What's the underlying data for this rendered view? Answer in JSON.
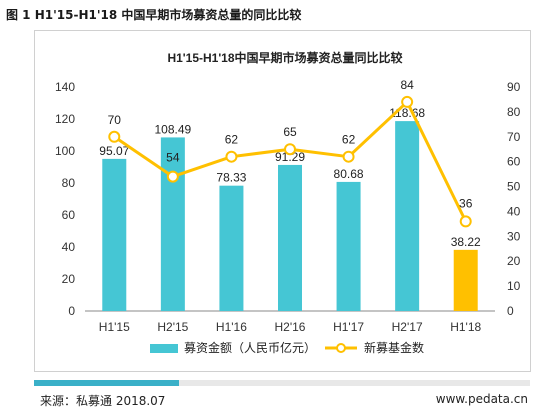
{
  "figure": {
    "caption": "图 1 H1'15-H1'18 中国早期市场募资总量的同比比较",
    "source": "来源：私募通 2018.07",
    "site": "www.pedata.cn"
  },
  "colors": {
    "bar": "#45c6d4",
    "bar_highlight": "#ffc000",
    "line": "#ffc000",
    "marker_fill": "#ffffff",
    "axis": "#888888",
    "grid": "#e6e6e6"
  },
  "chart_data": {
    "type": "bar+line",
    "title": "H1'15-H1'18中国早期市场募资总量同比比较",
    "categories": [
      "H1'15",
      "H2'15",
      "H1'16",
      "H2'16",
      "H1'17",
      "H2'17",
      "H1'18"
    ],
    "series": [
      {
        "name": "募资金额（人民币亿元）",
        "type": "bar",
        "axis": "left",
        "values": [
          95.07,
          108.49,
          78.33,
          91.29,
          80.68,
          118.68,
          38.22
        ],
        "labels": [
          "95.07",
          "108.49",
          "78.33",
          "91.29",
          "80.68",
          "118.68",
          "38.22"
        ],
        "highlight_index": 6
      },
      {
        "name": "新募基金数",
        "type": "line",
        "axis": "right",
        "values": [
          70,
          54,
          62,
          65,
          62,
          84,
          36
        ],
        "labels": [
          "70",
          "54",
          "62",
          "65",
          "62",
          "84",
          "36"
        ]
      }
    ],
    "y_left": {
      "min": 0,
      "max": 140,
      "ticks": [
        "0",
        "20",
        "40",
        "60",
        "80",
        "100",
        "120",
        "140"
      ]
    },
    "y_right": {
      "min": 0,
      "max": 90,
      "ticks": [
        "0",
        "10",
        "20",
        "30",
        "40",
        "50",
        "60",
        "70",
        "80",
        "90"
      ]
    },
    "grid": false,
    "legend_position": "bottom"
  }
}
